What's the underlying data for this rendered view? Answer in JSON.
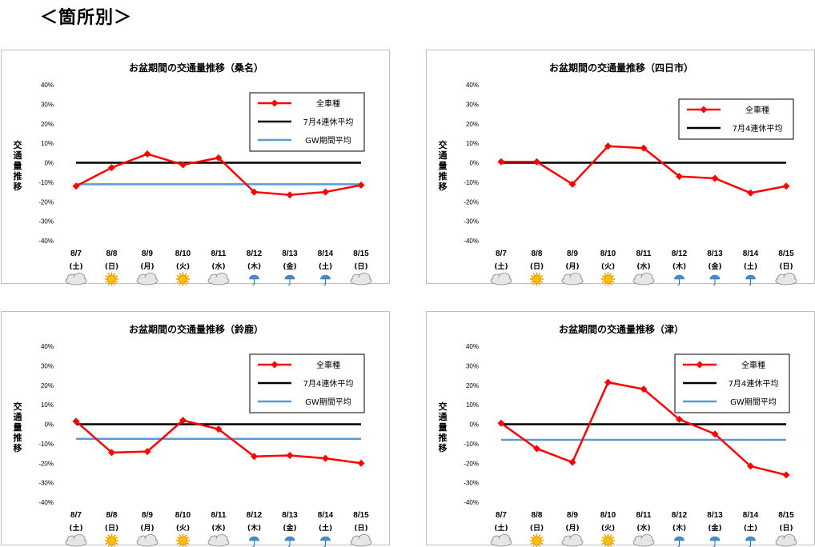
{
  "heading": "＜箇所別＞",
  "colors": {
    "all_vehicles": "#ff0000",
    "july_avg": "#000000",
    "gw_avg": "#5b9bd5"
  },
  "chart_data": [
    {
      "type": "line",
      "title": "お盆期間の交通量推移（桑名）",
      "ylabel": "交通量推移",
      "ylim": [
        -40,
        40
      ],
      "yticks": [
        "40%",
        "30%",
        "20%",
        "10%",
        "0%",
        "-10%",
        "-20%",
        "-30%",
        "-40%"
      ],
      "categories": [
        "8/7",
        "8/8",
        "8/9",
        "8/10",
        "8/11",
        "8/12",
        "8/13",
        "8/14",
        "8/15"
      ],
      "day_of_week": [
        "(土)",
        "(日)",
        "(月)",
        "(火)",
        "(水)",
        "(木)",
        "(金)",
        "(土)",
        "(日)"
      ],
      "weather": [
        "cloud-icon",
        "sun-icon",
        "cloud-icon",
        "sun-icon",
        "cloud-icon",
        "umbrella-icon",
        "umbrella-icon",
        "umbrella-icon",
        "cloud-icon"
      ],
      "legend_position": "top-right",
      "legend": {
        "all_vehicles": "全車種",
        "july_avg": "7月4連休平均",
        "gw_avg": "GW期間平均"
      },
      "series": [
        {
          "name": "全車種",
          "values": [
            -12,
            -2.5,
            4.5,
            -1,
            2.5,
            -15,
            -16.5,
            -15,
            -11.5
          ]
        },
        {
          "name": "7月4連休平均",
          "values": [
            0,
            0,
            0,
            0,
            0,
            0,
            0,
            0,
            0
          ]
        },
        {
          "name": "GW期間平均",
          "values": [
            -11,
            -11,
            -11,
            -11,
            -11,
            -11,
            -11,
            -11,
            -11
          ]
        }
      ]
    },
    {
      "type": "line",
      "title": "お盆期間の交通量推移（四日市）",
      "ylabel": "交通量推移",
      "ylim": [
        -40,
        40
      ],
      "yticks": [
        "40%",
        "30%",
        "20%",
        "10%",
        "0%",
        "-10%",
        "-20%",
        "-30%",
        "-40%"
      ],
      "categories": [
        "8/7",
        "8/8",
        "8/9",
        "8/10",
        "8/11",
        "8/12",
        "8/13",
        "8/14",
        "8/15"
      ],
      "day_of_week": [
        "(土)",
        "(日)",
        "(月)",
        "(火)",
        "(水)",
        "(木)",
        "(金)",
        "(土)",
        "(日)"
      ],
      "weather": [
        "cloud-icon",
        "sun-icon",
        "cloud-icon",
        "sun-icon",
        "cloud-icon",
        "umbrella-icon",
        "umbrella-icon",
        "umbrella-icon",
        "cloud-icon"
      ],
      "legend_position": "top-right",
      "legend": {
        "all_vehicles": "全車種",
        "july_avg": "7月4連休平均"
      },
      "series": [
        {
          "name": "全車種",
          "values": [
            0.5,
            0.5,
            -11,
            8.5,
            7.5,
            -7,
            -8,
            -15.5,
            -12
          ]
        },
        {
          "name": "7月4連休平均",
          "values": [
            0,
            0,
            0,
            0,
            0,
            0,
            0,
            0,
            0
          ]
        }
      ]
    },
    {
      "type": "line",
      "title": "お盆期間の交通量推移（鈴鹿）",
      "ylabel": "交通量推移",
      "ylim": [
        -40,
        40
      ],
      "yticks": [
        "40%",
        "30%",
        "20%",
        "10%",
        "0%",
        "-10%",
        "-20%",
        "-30%",
        "-40%"
      ],
      "categories": [
        "8/7",
        "8/8",
        "8/9",
        "8/10",
        "8/11",
        "8/12",
        "8/13",
        "8/14",
        "8/15"
      ],
      "day_of_week": [
        "(土)",
        "(日)",
        "(月)",
        "(火)",
        "(水)",
        "(木)",
        "(金)",
        "(土)",
        "(日)"
      ],
      "weather": [
        "cloud-icon",
        "sun-icon",
        "cloud-icon",
        "sun-icon",
        "cloud-icon",
        "umbrella-icon",
        "umbrella-icon",
        "umbrella-icon",
        "cloud-icon"
      ],
      "legend_position": "top-right",
      "legend": {
        "all_vehicles": "全車種",
        "july_avg": "7月4連休平均",
        "gw_avg": "GW期間平均"
      },
      "series": [
        {
          "name": "全車種",
          "values": [
            1.5,
            -14.5,
            -14,
            2,
            -2.5,
            -16.5,
            -16,
            -17.5,
            -20
          ]
        },
        {
          "name": "7月4連休平均",
          "values": [
            0,
            0,
            0,
            0,
            0,
            0,
            0,
            0,
            0
          ]
        },
        {
          "name": "GW期間平均",
          "values": [
            -7.5,
            -7.5,
            -7.5,
            -7.5,
            -7.5,
            -7.5,
            -7.5,
            -7.5,
            -7.5
          ]
        }
      ]
    },
    {
      "type": "line",
      "title": "お盆期間の交通量推移（津）",
      "ylabel": "交通量推移",
      "ylim": [
        -40,
        40
      ],
      "yticks": [
        "40%",
        "30%",
        "20%",
        "10%",
        "0%",
        "-10%",
        "-20%",
        "-30%",
        "-40%"
      ],
      "categories": [
        "8/7",
        "8/8",
        "8/9",
        "8/10",
        "8/11",
        "8/12",
        "8/13",
        "8/14",
        "8/15"
      ],
      "day_of_week": [
        "(土)",
        "(日)",
        "(月)",
        "(火)",
        "(水)",
        "(木)",
        "(金)",
        "(土)",
        "(日)"
      ],
      "weather": [
        "cloud-icon",
        "sun-icon",
        "cloud-icon",
        "sun-icon",
        "cloud-icon",
        "umbrella-icon",
        "umbrella-icon",
        "umbrella-icon",
        "cloud-icon"
      ],
      "legend_position": "top-right",
      "legend": {
        "all_vehicles": "全車種",
        "july_avg": "7月4連休平均",
        "gw_avg": "GW期間平均"
      },
      "series": [
        {
          "name": "全車種",
          "values": [
            0.5,
            -12.5,
            -19.5,
            21.5,
            18,
            2.5,
            -5,
            -21.5,
            -26
          ]
        },
        {
          "name": "7月4連休平均",
          "values": [
            0,
            0,
            0,
            0,
            0,
            0,
            0,
            0,
            0
          ]
        },
        {
          "name": "GW期間平均",
          "values": [
            -8,
            -8,
            -8,
            -8,
            -8,
            -8,
            -8,
            -8,
            -8
          ]
        }
      ]
    }
  ]
}
